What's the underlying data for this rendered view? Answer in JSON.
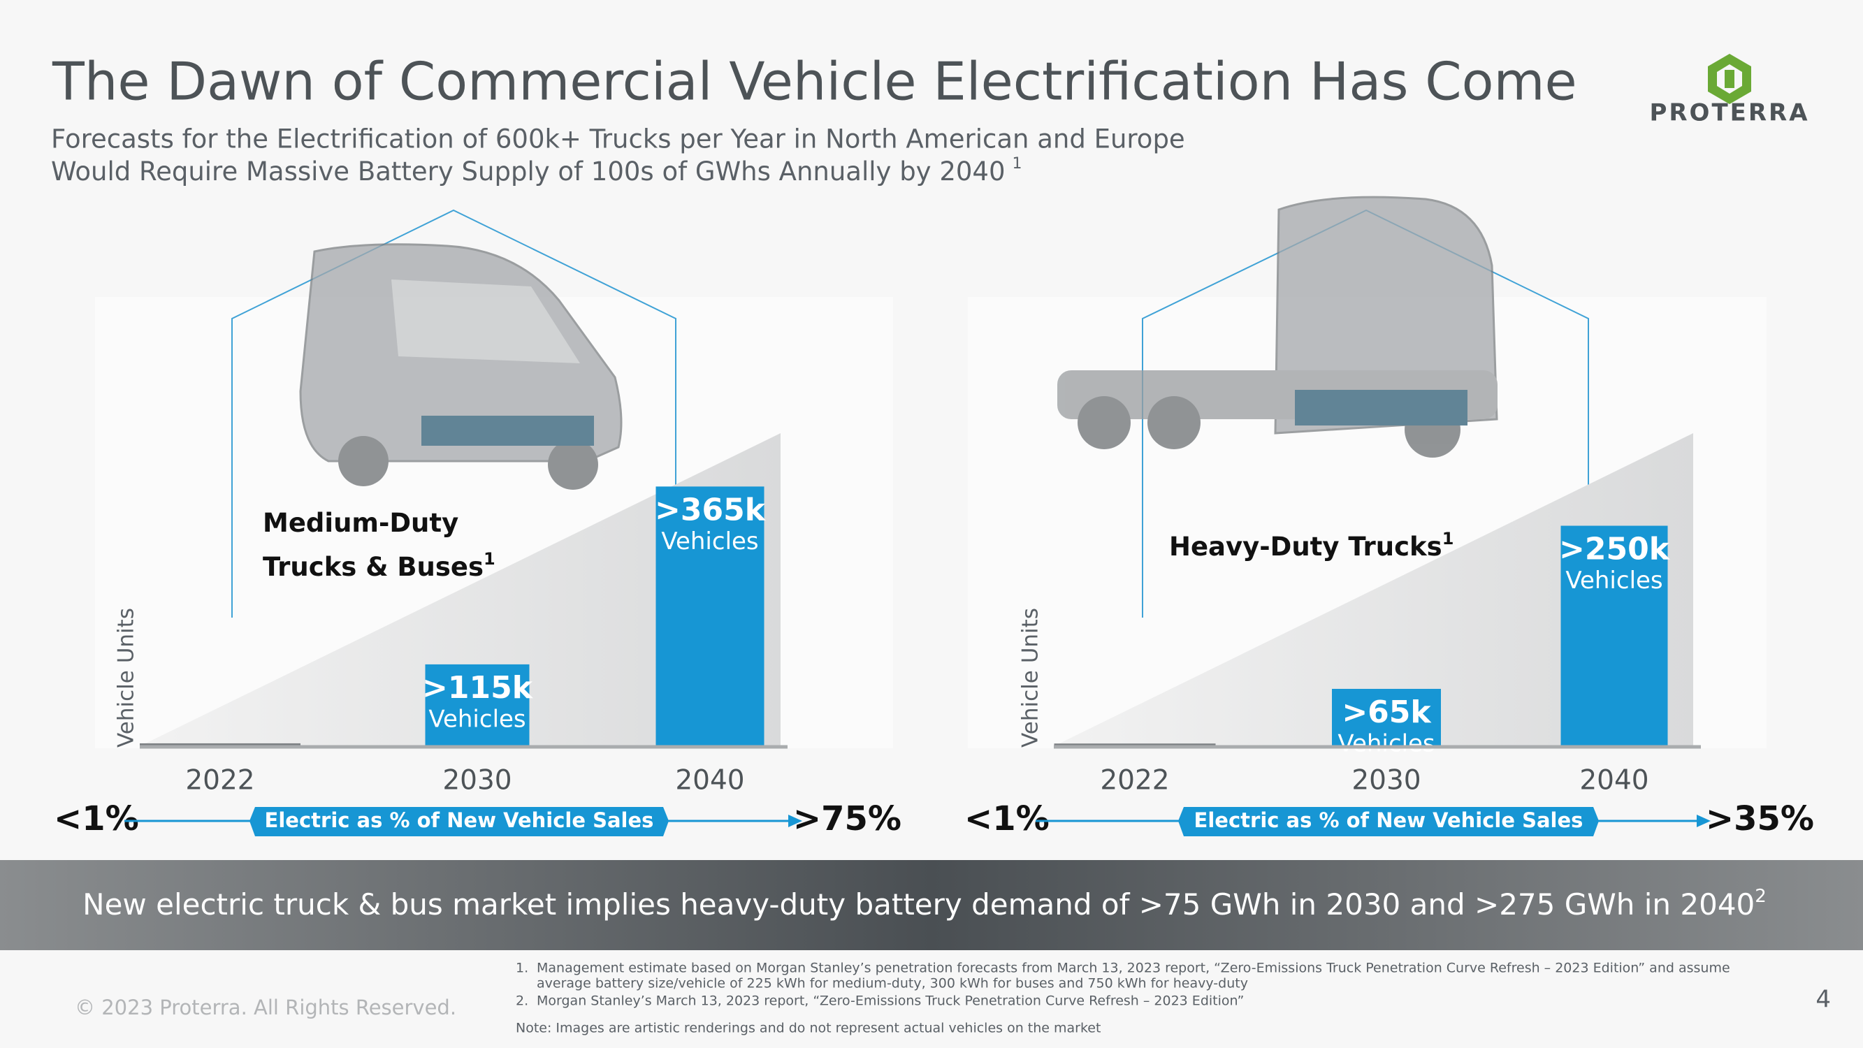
{
  "header": {
    "title": "The Dawn of Commercial Vehicle Electrification Has Come",
    "subtitle_lines": [
      "Forecasts for the Electrification of 600k+ Trucks per Year in North American and Europe",
      "Would Require Massive Battery Supply of 100s of GWhs Annually by 2040"
    ],
    "subtitle_note": "1"
  },
  "logo": {
    "text": "PROTERRA"
  },
  "chart_data": [
    {
      "type": "bar",
      "title_lines": [
        "Medium-Duty",
        "Trucks & Buses"
      ],
      "title_note": "1",
      "y_label": "Vehicle Units",
      "categories": [
        "2022",
        "2030",
        "2040"
      ],
      "values": [
        4000,
        115000,
        365000
      ],
      "value_labels": [
        null,
        ">115k",
        ">365k"
      ],
      "unit_label": "Vehicles",
      "colors": [
        "#7d8184",
        "#1796d4",
        "#1796d4"
      ],
      "ylim": [
        0,
        440000
      ],
      "share_start": "<1%",
      "share_label": "Electric as % of New Vehicle Sales",
      "share_end": ">75%"
    },
    {
      "type": "bar",
      "title_lines": [
        "Heavy-Duty Trucks"
      ],
      "title_note": "1",
      "y_label": "Vehicle Units",
      "categories": [
        "2022",
        "2030",
        "2040"
      ],
      "values": [
        3000,
        65000,
        250000
      ],
      "value_labels": [
        null,
        ">65k",
        ">250k"
      ],
      "unit_label": "Vehicles",
      "colors": [
        "#7d8184",
        "#1796d4",
        "#1796d4"
      ],
      "ylim": [
        0,
        355000
      ],
      "share_start": "<1%",
      "share_label": "Electric as % of New Vehicle Sales",
      "share_end": ">35%"
    }
  ],
  "banner": {
    "text": "New electric truck & bus market implies heavy-duty battery demand of >75 GWh in 2030 and >275 GWh in 2040",
    "note": "2"
  },
  "footer": {
    "copyright": "© 2023 Proterra. All Rights Reserved.",
    "footnotes": [
      {
        "number": "1.",
        "lines": [
          "Management estimate based on Morgan Stanley’s penetration forecasts from March 13, 2023 report, “Zero-Emissions Truck Penetration Curve Refresh – 2023 Edition” and assume",
          "average battery size/vehicle of 225 kWh for medium-duty, 300 kWh for buses and 750 kWh for heavy-duty"
        ]
      },
      {
        "number": "2.",
        "lines": [
          "Morgan Stanley’s March 13, 2023 report, “Zero-Emissions Truck Penetration Curve Refresh – 2023 Edition”"
        ]
      }
    ],
    "note": "Note: Images are artistic renderings and do not represent actual vehicles on the market",
    "page": "4"
  }
}
